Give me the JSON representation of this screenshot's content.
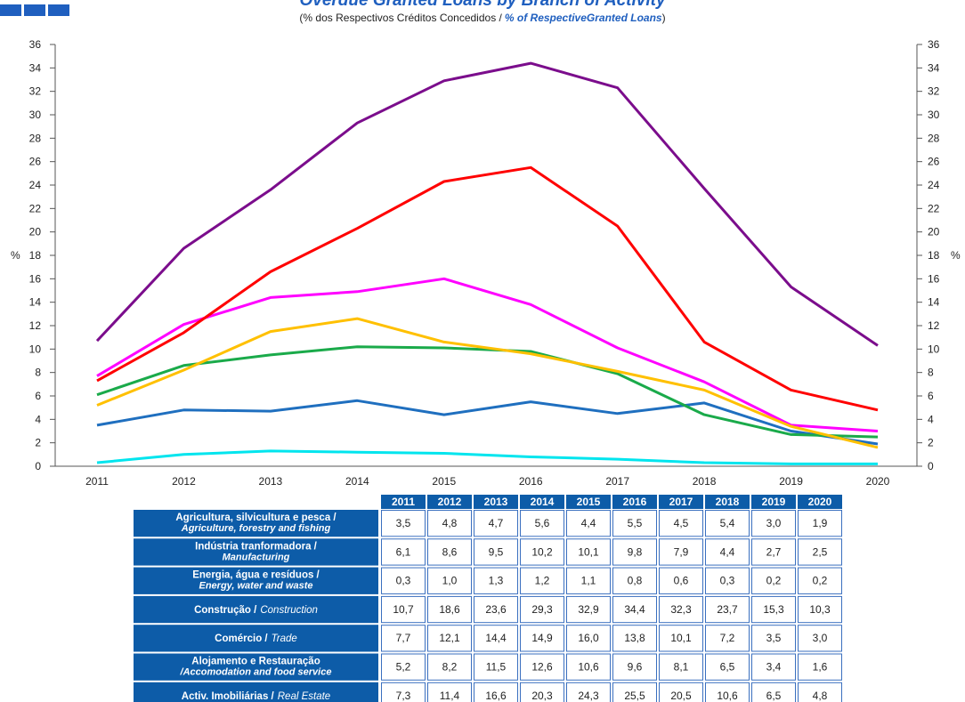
{
  "chart_data": {
    "type": "line",
    "title": "Overdue Granted Loans by Branch of Activity",
    "subtitle": {
      "pt": "(% dos Respectivos  Créditos Concedidos  /",
      "en": "% of RespectiveGranted Loans",
      "close": ")"
    },
    "ylabel": "%",
    "x": [
      2011,
      2012,
      2013,
      2014,
      2015,
      2016,
      2017,
      2018,
      2019,
      2020
    ],
    "ylim": [
      0,
      36
    ],
    "yticks": [
      0,
      2,
      4,
      6,
      8,
      10,
      12,
      14,
      16,
      18,
      20,
      22,
      24,
      26,
      28,
      30,
      32,
      34,
      36
    ],
    "series": [
      {
        "name": "Agricultura, silvicultura e pesca /",
        "name_en": "Agriculture, forestry and fishing",
        "color": "#1f6fbf",
        "values": [
          3.5,
          4.8,
          4.7,
          5.6,
          4.4,
          5.5,
          4.5,
          5.4,
          3.0,
          1.9
        ],
        "value_labels": [
          "3,5",
          "4,8",
          "4,7",
          "5,6",
          "4,4",
          "5,5",
          "4,5",
          "5,4",
          "3,0",
          "1,9"
        ]
      },
      {
        "name": "Indústria tranformadora /",
        "name_en": "Manufacturing",
        "color": "#1aaa4a",
        "values": [
          6.1,
          8.6,
          9.5,
          10.2,
          10.1,
          9.8,
          7.9,
          4.4,
          2.7,
          2.5
        ],
        "value_labels": [
          "6,1",
          "8,6",
          "9,5",
          "10,2",
          "10,1",
          "9,8",
          "7,9",
          "4,4",
          "2,7",
          "2,5"
        ]
      },
      {
        "name": "Energia, água e resíduos /",
        "name_en": "Energy, water and waste",
        "color": "#00e5ee",
        "values": [
          0.3,
          1.0,
          1.3,
          1.2,
          1.1,
          0.8,
          0.6,
          0.3,
          0.2,
          0.2
        ],
        "value_labels": [
          "0,3",
          "1,0",
          "1,3",
          "1,2",
          "1,1",
          "0,8",
          "0,6",
          "0,3",
          "0,2",
          "0,2"
        ]
      },
      {
        "name": "Construção /",
        "name_en": "Construction",
        "color": "#7b0d8c",
        "values": [
          10.7,
          18.6,
          23.6,
          29.3,
          32.9,
          34.4,
          32.3,
          23.7,
          15.3,
          10.3
        ],
        "value_labels": [
          "10,7",
          "18,6",
          "23,6",
          "29,3",
          "32,9",
          "34,4",
          "32,3",
          "23,7",
          "15,3",
          "10,3"
        ]
      },
      {
        "name": "Comércio /",
        "name_en": "Trade",
        "color": "#ff00ff",
        "values": [
          7.7,
          12.1,
          14.4,
          14.9,
          16.0,
          13.8,
          10.1,
          7.2,
          3.5,
          3.0
        ],
        "value_labels": [
          "7,7",
          "12,1",
          "14,4",
          "14,9",
          "16,0",
          "13,8",
          "10,1",
          "7,2",
          "3,5",
          "3,0"
        ]
      },
      {
        "name": "Alojamento e Restauração",
        "name_en": "/Accomodation and food service",
        "color": "#ffc000",
        "values": [
          5.2,
          8.2,
          11.5,
          12.6,
          10.6,
          9.6,
          8.1,
          6.5,
          3.4,
          1.6
        ],
        "value_labels": [
          "5,2",
          "8,2",
          "11,5",
          "12,6",
          "10,6",
          "9,6",
          "8,1",
          "6,5",
          "3,4",
          "1,6"
        ]
      },
      {
        "name": "Activ. Imobiliárias /",
        "name_en": "Real Estate",
        "color": "#ff0000",
        "values": [
          7.3,
          11.4,
          16.6,
          20.3,
          24.3,
          25.5,
          20.5,
          10.6,
          6.5,
          4.8
        ],
        "value_labels": [
          "7,3",
          "11,4",
          "16,6",
          "20,3",
          "24,3",
          "25,5",
          "20,5",
          "10,6",
          "6,5",
          "4,8"
        ]
      }
    ]
  }
}
